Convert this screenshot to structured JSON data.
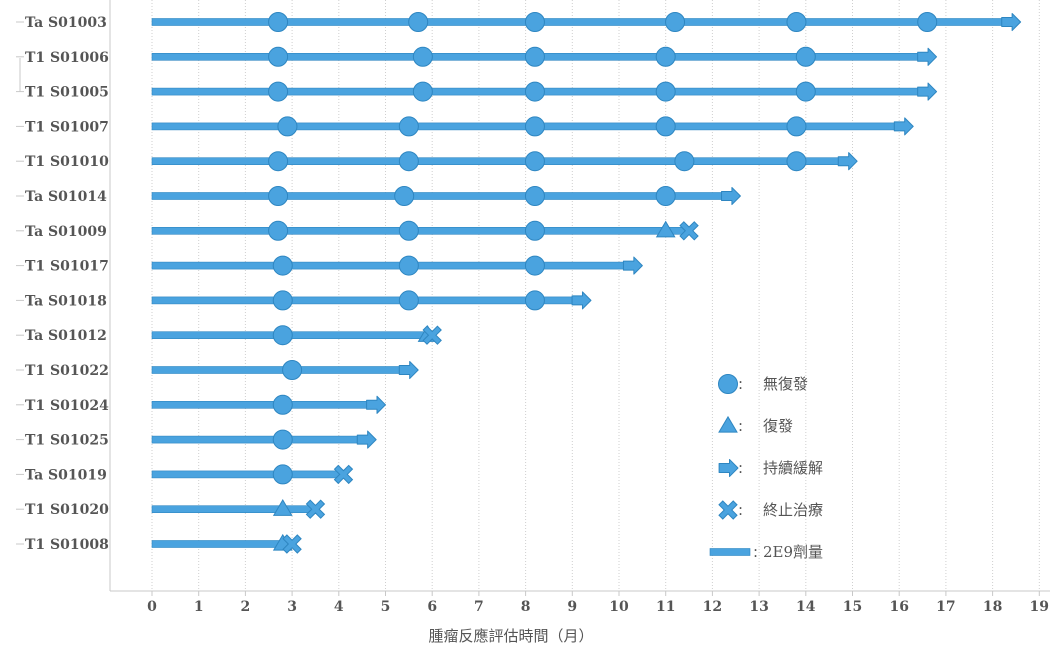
{
  "chart_data": {
    "type": "swimmer",
    "xlabel": "腫瘤反應評估時間（月）",
    "xticks": [
      0,
      1,
      2,
      3,
      4,
      5,
      6,
      7,
      8,
      9,
      10,
      11,
      12,
      13,
      14,
      15,
      16,
      17,
      18,
      19
    ],
    "xlim": [
      0,
      19
    ],
    "grid": "vertical-dotted",
    "colors": {
      "accent": "#4AA3DF",
      "stroke": "#2E86C1",
      "text": "#555555",
      "axis": "#C8C8C8"
    },
    "legend": {
      "position": "right",
      "items": [
        {
          "marker": "circle",
          "label": "無復發"
        },
        {
          "marker": "triangle",
          "label": "復發"
        },
        {
          "marker": "arrow",
          "label": "持續緩解"
        },
        {
          "marker": "cross",
          "label": "終止治療"
        },
        {
          "marker": "bar",
          "label": "2E9劑量"
        }
      ]
    },
    "subjects": [
      {
        "id": "Ta S01003",
        "end": 18.6,
        "end_marker": "arrow",
        "no_relapse": [
          2.7,
          5.7,
          8.2,
          11.2,
          13.8,
          16.6
        ],
        "relapse": [],
        "discontinued": []
      },
      {
        "id": "T1 S01006",
        "end": 16.8,
        "end_marker": "arrow",
        "no_relapse": [
          2.7,
          5.8,
          8.2,
          11.0,
          14.0
        ],
        "relapse": [],
        "discontinued": []
      },
      {
        "id": "T1 S01005",
        "end": 16.8,
        "end_marker": "arrow",
        "no_relapse": [
          2.7,
          5.8,
          8.2,
          11.0,
          14.0
        ],
        "relapse": [],
        "discontinued": []
      },
      {
        "id": "T1 S01007",
        "end": 16.3,
        "end_marker": "arrow",
        "no_relapse": [
          2.9,
          5.5,
          8.2,
          11.0,
          13.8
        ],
        "relapse": [],
        "discontinued": []
      },
      {
        "id": "T1 S01010",
        "end": 15.1,
        "end_marker": "arrow",
        "no_relapse": [
          2.7,
          5.5,
          8.2,
          11.4,
          13.8
        ],
        "relapse": [],
        "discontinued": []
      },
      {
        "id": "Ta S01014",
        "end": 12.6,
        "end_marker": "arrow",
        "no_relapse": [
          2.7,
          5.4,
          8.2,
          11.0
        ],
        "relapse": [],
        "discontinued": []
      },
      {
        "id": "Ta S01009",
        "end": 11.5,
        "end_marker": "cross",
        "no_relapse": [
          2.7,
          5.5,
          8.2
        ],
        "relapse": [
          11.0
        ],
        "discontinued": [
          11.5
        ]
      },
      {
        "id": "T1 S01017",
        "end": 10.5,
        "end_marker": "arrow",
        "no_relapse": [
          2.8,
          5.5,
          8.2
        ],
        "relapse": [],
        "discontinued": []
      },
      {
        "id": "Ta S01018",
        "end": 9.4,
        "end_marker": "arrow",
        "no_relapse": [
          2.8,
          5.5,
          8.2
        ],
        "relapse": [],
        "discontinued": []
      },
      {
        "id": "Ta S01012",
        "end": 6.0,
        "end_marker": "cross",
        "no_relapse": [
          2.8
        ],
        "relapse": [
          5.9
        ],
        "discontinued": [
          6.0
        ]
      },
      {
        "id": "T1 S01022",
        "end": 5.7,
        "end_marker": "arrow",
        "no_relapse": [
          3.0
        ],
        "relapse": [],
        "discontinued": []
      },
      {
        "id": "T1 S01024",
        "end": 5.0,
        "end_marker": "arrow",
        "no_relapse": [
          2.8
        ],
        "relapse": [],
        "discontinued": []
      },
      {
        "id": "T1 S01025",
        "end": 4.8,
        "end_marker": "arrow",
        "no_relapse": [
          2.8
        ],
        "relapse": [],
        "discontinued": []
      },
      {
        "id": "Ta S01019",
        "end": 4.1,
        "end_marker": "cross",
        "no_relapse": [
          2.8
        ],
        "relapse": [],
        "discontinued": [
          4.1
        ]
      },
      {
        "id": "T1 S01020",
        "end": 3.5,
        "end_marker": "cross",
        "no_relapse": [],
        "relapse": [
          2.8
        ],
        "discontinued": [
          3.5
        ]
      },
      {
        "id": "T1 S01008",
        "end": 3.0,
        "end_marker": "cross",
        "no_relapse": [],
        "relapse": [
          2.8
        ],
        "discontinued": [
          3.0
        ]
      }
    ]
  }
}
